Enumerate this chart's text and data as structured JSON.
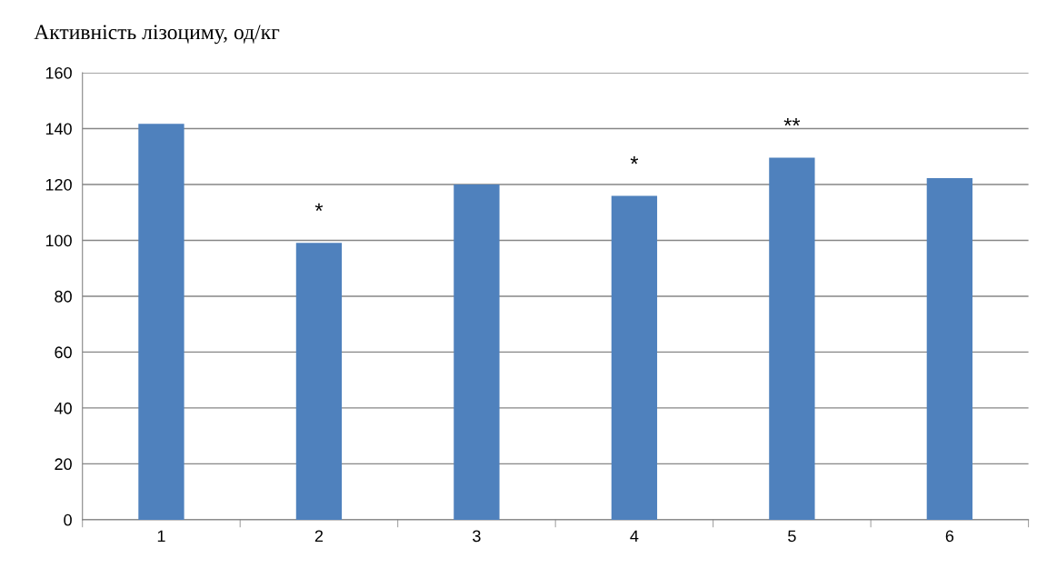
{
  "chart_data": {
    "type": "bar",
    "ylabel": "Активність лізоциму, од/кг",
    "categories": [
      "1",
      "2",
      "3",
      "4",
      "5",
      "6"
    ],
    "values": [
      141.7,
      99.1,
      120,
      115.9,
      129.6,
      122.3
    ],
    "color": "#4f81bd",
    "ylim": [
      0,
      160
    ],
    "yticks": [
      0,
      20,
      40,
      60,
      80,
      100,
      120,
      140,
      160
    ],
    "grid": "y",
    "legend": false,
    "annotations": [
      {
        "text": "*",
        "x": "2",
        "y": 99.1
      },
      {
        "text": "*",
        "x": "4",
        "y": 115.9
      },
      {
        "text": "**",
        "x": "5",
        "y": 129.6
      }
    ]
  }
}
